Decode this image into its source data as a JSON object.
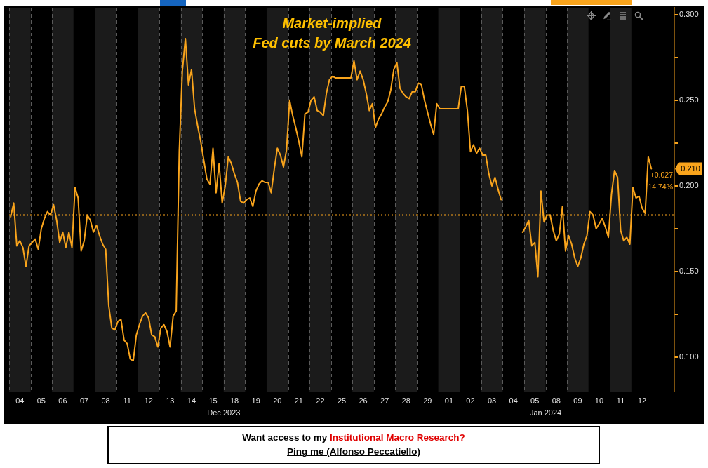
{
  "chart_data": {
    "type": "line",
    "title": "Market-implied",
    "subtitle": "Fed cuts by March 2024",
    "color": "#f9a41c",
    "categories": [
      null,
      null,
      null,
      "04",
      null,
      null,
      null,
      null,
      null,
      null,
      "05",
      null,
      null,
      null,
      null,
      null,
      null,
      "06",
      null,
      null,
      null,
      null,
      null,
      null,
      "07",
      null,
      null,
      null,
      null,
      null,
      null,
      "08",
      null,
      null,
      null,
      null,
      null,
      null,
      "11",
      null,
      null,
      null,
      null,
      null,
      null,
      "12",
      null,
      null,
      null,
      null,
      null,
      null,
      "13",
      null,
      null,
      null,
      null,
      null,
      null,
      "14",
      null,
      null,
      null,
      null,
      null,
      null,
      "15",
      null,
      null,
      null,
      null,
      null,
      null,
      "18",
      null,
      null,
      null,
      null,
      null,
      null,
      "19",
      null,
      null,
      null,
      null,
      null,
      null,
      "20",
      null,
      null,
      null,
      null,
      null,
      null,
      "21",
      null,
      null,
      null,
      null,
      null,
      null,
      "22",
      null,
      null,
      null,
      null,
      null,
      null,
      "25",
      null,
      null,
      null,
      null,
      null,
      null,
      "26",
      null,
      null,
      null,
      null,
      null,
      null,
      "27",
      null,
      null,
      null,
      null,
      null,
      null,
      "28",
      null,
      null,
      null,
      null,
      null,
      null,
      "29",
      null,
      null,
      null,
      null,
      null,
      null,
      "01",
      null,
      null,
      null,
      null,
      null,
      null,
      "02",
      null,
      null,
      null,
      null,
      null,
      null,
      "03",
      null,
      null,
      null,
      null,
      null,
      null,
      "04",
      null,
      null,
      null,
      null,
      null,
      null,
      "05",
      null,
      null,
      null,
      null,
      null,
      null,
      "08",
      null,
      null,
      null,
      null,
      null,
      null,
      "09",
      null,
      null,
      null,
      null,
      null,
      null,
      "10",
      null,
      null,
      null,
      null,
      null,
      null,
      "11",
      null,
      null,
      null,
      null,
      null,
      null,
      "12",
      null,
      null,
      null,
      null,
      null,
      null,
      null,
      null,
      null,
      null
    ],
    "values": [
      0.182,
      0.19,
      0.165,
      0.168,
      0.164,
      0.153,
      0.165,
      0.167,
      0.169,
      0.163,
      0.175,
      0.181,
      0.185,
      0.183,
      0.189,
      0.18,
      0.167,
      0.173,
      0.164,
      0.173,
      0.164,
      0.199,
      0.193,
      0.162,
      0.168,
      0.183,
      0.18,
      0.173,
      0.177,
      0.171,
      0.166,
      0.163,
      0.13,
      0.117,
      0.116,
      0.121,
      0.122,
      0.11,
      0.108,
      0.099,
      0.098,
      0.113,
      0.119,
      0.124,
      0.126,
      0.123,
      0.113,
      0.112,
      0.106,
      0.117,
      0.119,
      0.115,
      0.106,
      0.124,
      0.127,
      0.22,
      0.267,
      0.286,
      0.259,
      0.268,
      0.245,
      0.235,
      0.226,
      0.215,
      0.204,
      0.201,
      0.222,
      0.196,
      0.213,
      0.19,
      0.2,
      0.217,
      0.213,
      0.207,
      0.202,
      0.191,
      0.19,
      0.192,
      0.193,
      0.188,
      0.197,
      0.201,
      0.203,
      0.202,
      0.202,
      0.196,
      0.21,
      0.222,
      0.218,
      0.211,
      0.221,
      0.25,
      0.241,
      0.234,
      0.226,
      0.217,
      0.242,
      0.243,
      0.25,
      0.252,
      0.244,
      0.243,
      0.241,
      0.254,
      0.262,
      0.264,
      0.263,
      0.263,
      0.263,
      0.263,
      0.263,
      0.263,
      0.273,
      0.262,
      0.267,
      0.262,
      0.254,
      0.244,
      0.248,
      0.234,
      0.239,
      0.242,
      0.246,
      0.249,
      0.256,
      0.268,
      0.272,
      0.257,
      0.254,
      0.252,
      0.251,
      0.255,
      0.255,
      0.26,
      0.259,
      0.25,
      0.243,
      0.236,
      0.23,
      0.248,
      0.245,
      0.245,
      0.245,
      0.245,
      0.245,
      0.245,
      0.245,
      0.258,
      0.258,
      0.244,
      0.22,
      0.224,
      0.219,
      0.222,
      0.218,
      0.218,
      0.207,
      0.2,
      0.205,
      0.198,
      0.192,
      null,
      null,
      null,
      null,
      null,
      null,
      0.173,
      0.176,
      0.18,
      0.165,
      0.167,
      0.147,
      0.197,
      0.179,
      0.183,
      0.183,
      0.174,
      0.168,
      0.172,
      0.188,
      0.162,
      0.171,
      0.166,
      0.158,
      0.153,
      0.158,
      0.166,
      0.171,
      0.185,
      0.183,
      0.175,
      0.178,
      0.181,
      0.176,
      0.17,
      0.195,
      0.209,
      0.205,
      0.174,
      0.168,
      0.17,
      0.166,
      0.199,
      0.193,
      0.194,
      0.187,
      0.184,
      0.217,
      0.21,
      null,
      null,
      null,
      null,
      null,
      null,
      null
    ],
    "ylim": [
      0.08,
      0.304
    ],
    "yticks": [
      {
        "value": 0.1,
        "label": "0.100"
      },
      {
        "value": 0.125,
        "label": null
      },
      {
        "value": 0.15,
        "label": "0.150"
      },
      {
        "value": 0.175,
        "label": null
      },
      {
        "value": 0.2,
        "label": "0.200"
      },
      {
        "value": 0.225,
        "label": null
      },
      {
        "value": 0.25,
        "label": "0.250"
      },
      {
        "value": 0.275,
        "label": null
      },
      {
        "value": 0.3,
        "label": "0.300"
      }
    ],
    "grid": "x",
    "ref_lines": [
      {
        "axis": "y",
        "value": 0.183,
        "color": "#f9a41c",
        "line_style": "dotted"
      }
    ],
    "annotations": [
      "0.210",
      "+0.027",
      "14.74%",
      "Dec 2023",
      "Jan 2024",
      "Want access to my",
      "Institutional Macro Research?",
      "Ping me (Alfonso Peccatiello)"
    ]
  }
}
